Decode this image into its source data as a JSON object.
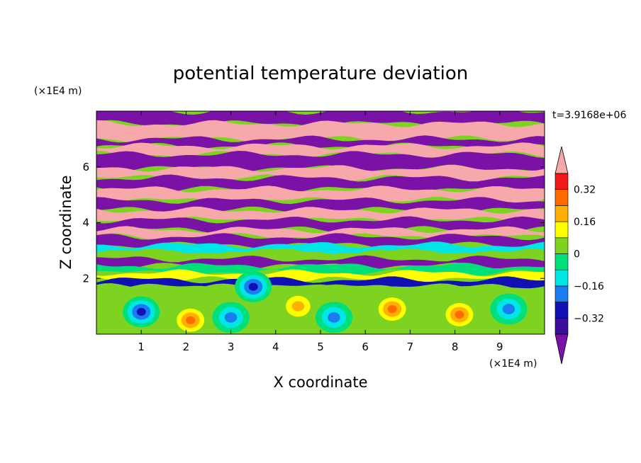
{
  "chart_data": {
    "type": "heatmap",
    "title": "potential temperature deviation",
    "xlabel": "X coordinate",
    "ylabel": "Z coordinate",
    "x_unit": "(×1E4 m)",
    "y_unit": "(×1E4 m)",
    "time_label": "t=3.9168e+06",
    "xlim": [
      0,
      10
    ],
    "ylim": [
      0,
      8
    ],
    "xticks": [
      1,
      2,
      3,
      4,
      5,
      6,
      7,
      8,
      9
    ],
    "yticks": [
      2,
      4,
      6
    ],
    "colorbar": {
      "levels": [
        -0.4,
        -0.32,
        -0.24,
        -0.16,
        -0.08,
        0,
        0.08,
        0.16,
        0.24,
        0.32,
        0.4
      ],
      "labeled_ticks": [
        "0.32",
        "0.16",
        "0",
        "−0.16",
        "−0.32"
      ],
      "labeled_values": [
        0.32,
        0.16,
        0,
        -0.16,
        -0.32
      ],
      "under_color": "#7b12a8",
      "over_color": "#f7a8aa",
      "colors": [
        "#7b12a8",
        "#3a0d9a",
        "#1010b4",
        "#1a7cf0",
        "#00e5e5",
        "#00e07a",
        "#7ed321",
        "#ffff00",
        "#ffb000",
        "#ff6a00",
        "#f01818",
        "#f7a8aa"
      ]
    },
    "bands": [
      {
        "z": [
          7.55,
          8.0
        ],
        "value": -0.45
      },
      {
        "z": [
          7.0,
          7.55
        ],
        "value": 0.45
      },
      {
        "z": [
          6.75,
          7.0
        ],
        "value": -0.45
      },
      {
        "z": [
          6.45,
          6.75
        ],
        "value": 0.45
      },
      {
        "z": [
          5.95,
          6.45
        ],
        "value": -0.45
      },
      {
        "z": [
          5.6,
          5.95
        ],
        "value": 0.45
      },
      {
        "z": [
          5.2,
          5.6
        ],
        "value": -0.45
      },
      {
        "z": [
          4.8,
          5.2
        ],
        "value": 0.45
      },
      {
        "z": [
          4.45,
          4.8
        ],
        "value": -0.45
      },
      {
        "z": [
          4.1,
          4.45
        ],
        "value": 0.45
      },
      {
        "z": [
          3.75,
          4.1
        ],
        "value": -0.45
      },
      {
        "z": [
          3.5,
          3.75
        ],
        "value": 0.45
      },
      {
        "z": [
          3.2,
          3.5
        ],
        "value": -0.45
      },
      {
        "z": [
          2.95,
          3.2
        ],
        "value": -0.1
      },
      {
        "z": [
          2.7,
          2.95
        ],
        "value": 0.05
      },
      {
        "z": [
          2.45,
          2.7
        ],
        "value": -0.45
      },
      {
        "z": [
          2.2,
          2.45
        ],
        "value": -0.05
      },
      {
        "z": [
          1.95,
          2.2
        ],
        "value": 0.1
      },
      {
        "z": [
          1.7,
          1.95
        ],
        "value": -0.3
      },
      {
        "z": [
          0.0,
          1.7
        ],
        "value": 0.02
      }
    ],
    "anomalies": [
      {
        "x": 1.0,
        "z": 0.8,
        "value": -0.3
      },
      {
        "x": 2.1,
        "z": 0.5,
        "value": 0.3
      },
      {
        "x": 3.0,
        "z": 0.6,
        "value": -0.2
      },
      {
        "x": 4.5,
        "z": 1.0,
        "value": 0.2
      },
      {
        "x": 5.3,
        "z": 0.6,
        "value": -0.25
      },
      {
        "x": 6.6,
        "z": 0.9,
        "value": 0.3
      },
      {
        "x": 8.1,
        "z": 0.7,
        "value": 0.3
      },
      {
        "x": 9.2,
        "z": 0.9,
        "value": -0.2
      },
      {
        "x": 3.5,
        "z": 1.7,
        "value": -0.35
      }
    ]
  }
}
